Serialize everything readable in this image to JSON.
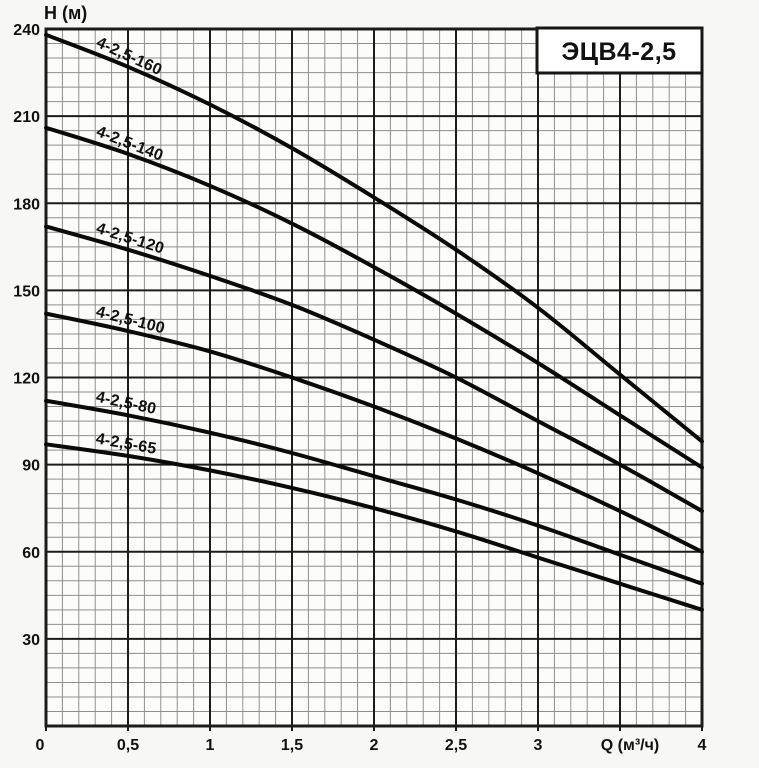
{
  "title_box": {
    "label": "ЭЦВ4-2,5"
  },
  "y_axis": {
    "label": "Н (м)",
    "ticks": [
      "240",
      "210",
      "180",
      "150",
      "120",
      "90",
      "60",
      "30"
    ],
    "tick_values": [
      240,
      210,
      180,
      150,
      120,
      90,
      60,
      30
    ]
  },
  "x_axis": {
    "unit_label": "Q (м³/ч)",
    "unit_label_q": 3.5,
    "ticks": [
      "0",
      "0,5",
      "1",
      "1,5",
      "2",
      "2,5",
      "3",
      "4"
    ],
    "tick_values": [
      0,
      0.5,
      1,
      1.5,
      2,
      2.5,
      3,
      4
    ]
  },
  "chart_data": {
    "type": "line",
    "x": [
      0,
      0.5,
      1,
      1.5,
      2,
      2.5,
      3,
      3.5,
      4
    ],
    "series": [
      {
        "name": "4-2,5-160",
        "values": [
          238,
          227,
          214,
          199,
          182,
          164,
          144,
          121,
          98
        ]
      },
      {
        "name": "4-2,5-140",
        "values": [
          206,
          197,
          186,
          173,
          158,
          142,
          125,
          107,
          89
        ]
      },
      {
        "name": "4-2,5-120",
        "values": [
          172,
          164,
          155,
          145,
          133,
          120,
          105,
          90,
          74
        ]
      },
      {
        "name": "4-2,5-100",
        "values": [
          142,
          136,
          129,
          120,
          110,
          99,
          87,
          74,
          60
        ]
      },
      {
        "name": "4-2,5-80",
        "values": [
          112,
          107,
          101,
          94,
          86,
          78,
          69,
          59,
          49
        ]
      },
      {
        "name": "4-2,5-65",
        "values": [
          97,
          93,
          88,
          82,
          75,
          67,
          58,
          49,
          40
        ]
      }
    ],
    "title": "ЭЦВ4-2,5",
    "xlabel": "Q (м³/ч)",
    "ylabel": "Н (м)",
    "xlim": [
      0,
      4
    ],
    "ylim": [
      0,
      240
    ],
    "x_major_step": 0.5,
    "x_minor_step": 0.1,
    "y_major_step": 30,
    "y_minor_step": 5,
    "grid": "on",
    "legend_position": "labels-on-curves"
  },
  "colors": {
    "curve": "#0a0a0a",
    "major_grid": "#1c1c1c",
    "minor_grid": "#8f8f8f",
    "plot_background": "#fcfcfa",
    "page_background": "#f7f7f5",
    "title_box_fill": "#ffffff",
    "title_box_border": "#161616",
    "text": "#111111"
  }
}
